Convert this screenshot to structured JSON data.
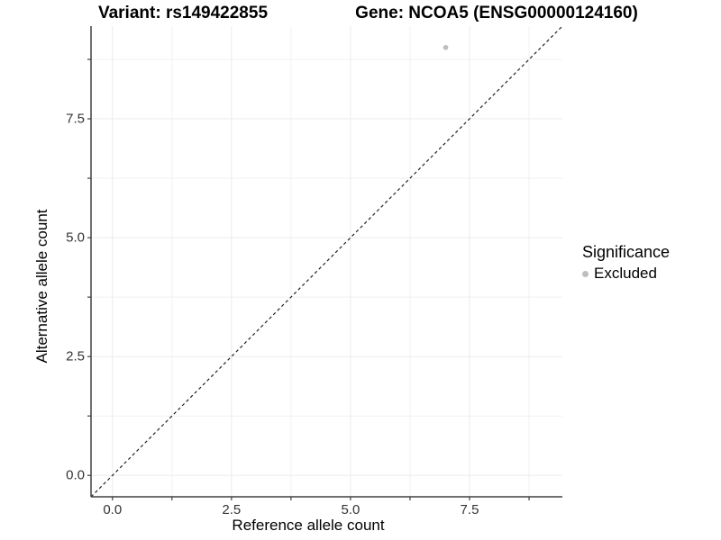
{
  "chart_data": {
    "type": "scatter",
    "titles": {
      "left": "Variant: rs149422855",
      "right": "Gene: NCOA5 (ENSG00000124160)"
    },
    "xlabel": "Reference allele count",
    "ylabel": "Alternative allele count",
    "xlim": [
      -0.45,
      9.45
    ],
    "ylim": [
      -0.45,
      9.45
    ],
    "x_major_ticks": [
      0.0,
      2.5,
      5.0,
      7.5
    ],
    "x_minor_ticks": [
      1.25,
      3.75,
      6.25,
      8.75
    ],
    "x_tick_labels": [
      "0.0",
      "2.5",
      "5.0",
      "7.5"
    ],
    "y_major_ticks": [
      0.0,
      2.5,
      5.0,
      7.5
    ],
    "y_minor_ticks": [
      1.25,
      3.75,
      6.25,
      8.75
    ],
    "y_tick_labels": [
      "0.0",
      "2.5",
      "5.0",
      "7.5"
    ],
    "grid": {
      "major_color": "#ebebeb",
      "minor_color": "#f1f1f1"
    },
    "axis_color": "#404040",
    "tick_label_color": "#333333",
    "identity_line": {
      "slope": 1,
      "intercept": 0,
      "style": "dashed",
      "color": "#222222"
    },
    "series": [
      {
        "name": "Excluded",
        "color": "#bebebe",
        "points": [
          {
            "x": 7,
            "y": 9
          }
        ]
      }
    ],
    "legend": {
      "position": "right",
      "title": "Significance",
      "items": [
        {
          "label": "Excluded",
          "color": "#bebebe"
        }
      ]
    }
  }
}
